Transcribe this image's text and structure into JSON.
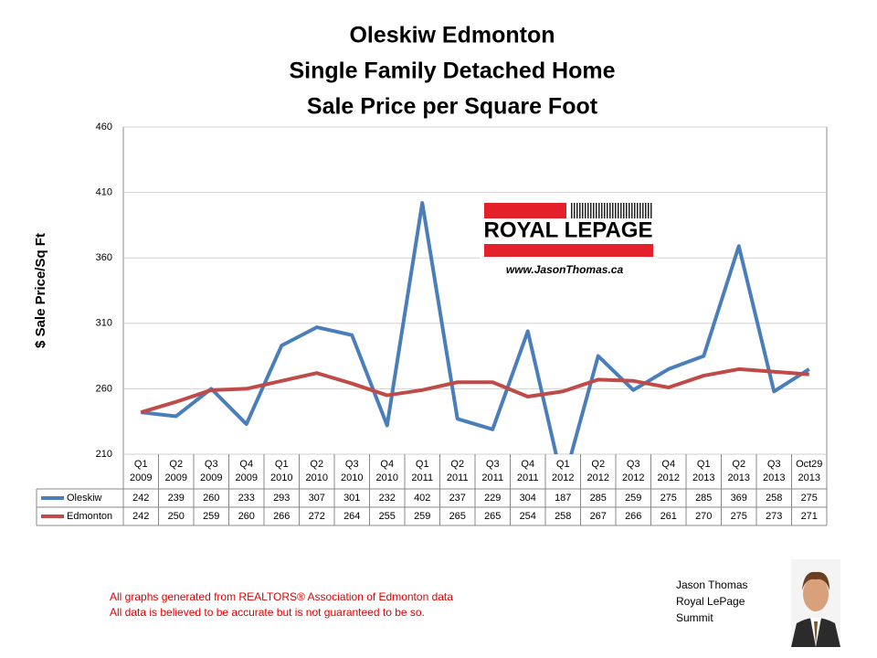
{
  "chart_data": {
    "type": "line",
    "title": [
      "Oleskiw Edmonton",
      "Single Family Detached Home",
      "Sale Price per Square Foot"
    ],
    "y_label": "$ Sale Price/Sq Ft",
    "categories": [
      [
        "Q1",
        "2009"
      ],
      [
        "Q2",
        "2009"
      ],
      [
        "Q3",
        "2009"
      ],
      [
        "Q4",
        "2009"
      ],
      [
        "Q1",
        "2010"
      ],
      [
        "Q2",
        "2010"
      ],
      [
        "Q3",
        "2010"
      ],
      [
        "Q4",
        "2010"
      ],
      [
        "Q1",
        "2011"
      ],
      [
        "Q2",
        "2011"
      ],
      [
        "Q3",
        "2011"
      ],
      [
        "Q4",
        "2011"
      ],
      [
        "Q1",
        "2012"
      ],
      [
        "Q2",
        "2012"
      ],
      [
        "Q3",
        "2012"
      ],
      [
        "Q4",
        "2012"
      ],
      [
        "Q1",
        "2013"
      ],
      [
        "Q2",
        "2013"
      ],
      [
        "Q3",
        "2013"
      ],
      [
        "Oct29",
        "2013"
      ]
    ],
    "series": [
      {
        "name": "Oleskiw",
        "color": "#4a7ebb",
        "values": [
          242,
          239,
          260,
          233,
          293,
          307,
          301,
          232,
          402,
          237,
          229,
          304,
          187,
          285,
          259,
          275,
          285,
          369,
          258,
          275
        ]
      },
      {
        "name": "Edmonton",
        "color": "#be4b48",
        "values": [
          242,
          250,
          259,
          260,
          266,
          272,
          264,
          255,
          259,
          265,
          265,
          254,
          258,
          267,
          266,
          261,
          270,
          275,
          273,
          271
        ]
      }
    ],
    "ylim": [
      210,
      460
    ],
    "yticks": [
      210,
      260,
      310,
      360,
      410,
      460
    ],
    "grid": true
  },
  "logo": {
    "brand": "ROYAL LEPAGE",
    "url": "www.JasonThomas.ca"
  },
  "footer": [
    "All graphs generated from REALTORS® Association of Edmonton data",
    "All data is believed to be accurate but is not guaranteed to be so."
  ],
  "agent": [
    "Jason Thomas",
    "Royal LePage",
    "Summit"
  ]
}
